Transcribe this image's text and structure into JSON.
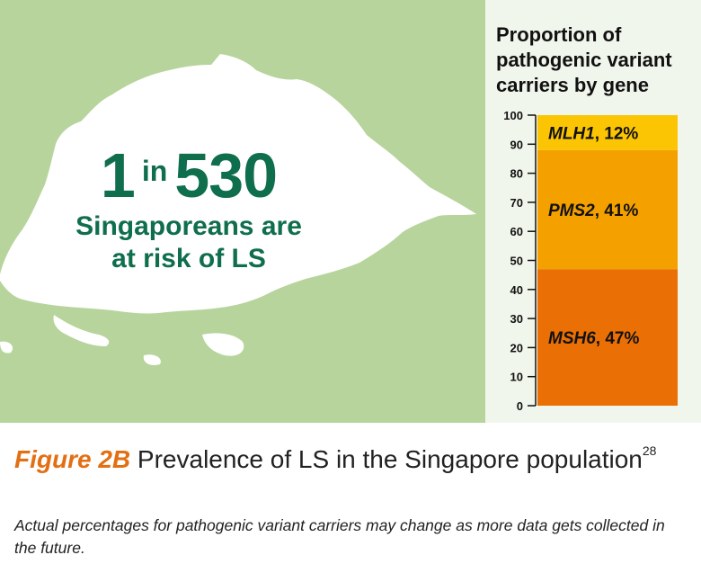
{
  "stat": {
    "number_1": "1",
    "word_in": "in",
    "number_2": "530",
    "line_2": "Singaporeans are",
    "line_3": "at risk of LS"
  },
  "chart_data": {
    "type": "bar",
    "stacked": true,
    "title": "Proportion of pathogenic variant carriers by gene",
    "ylim": [
      0,
      100
    ],
    "yticks": [
      0,
      10,
      20,
      30,
      40,
      50,
      60,
      70,
      80,
      90,
      100
    ],
    "segments": [
      {
        "gene": "MSH6",
        "label": ", 47%",
        "value": 47,
        "color": "#ea7005"
      },
      {
        "gene": "PMS2",
        "label": ", 41%",
        "value": 41,
        "color": "#f4a100"
      },
      {
        "gene": "MLH1",
        "label": ", 12%",
        "value": 12,
        "color": "#fcc503"
      }
    ]
  },
  "caption": {
    "figure_label": "Figure 2B",
    "text": " Prevalence of LS in the Singapore population",
    "superscript": "28"
  },
  "note": "Actual percentages for pathogenic variant carriers may change as more data gets collected in the future.",
  "colors": {
    "map_background": "#b6d49b",
    "island": "#ffffff",
    "stat_text": "#0f6e4b",
    "accent": "#e36f12"
  }
}
